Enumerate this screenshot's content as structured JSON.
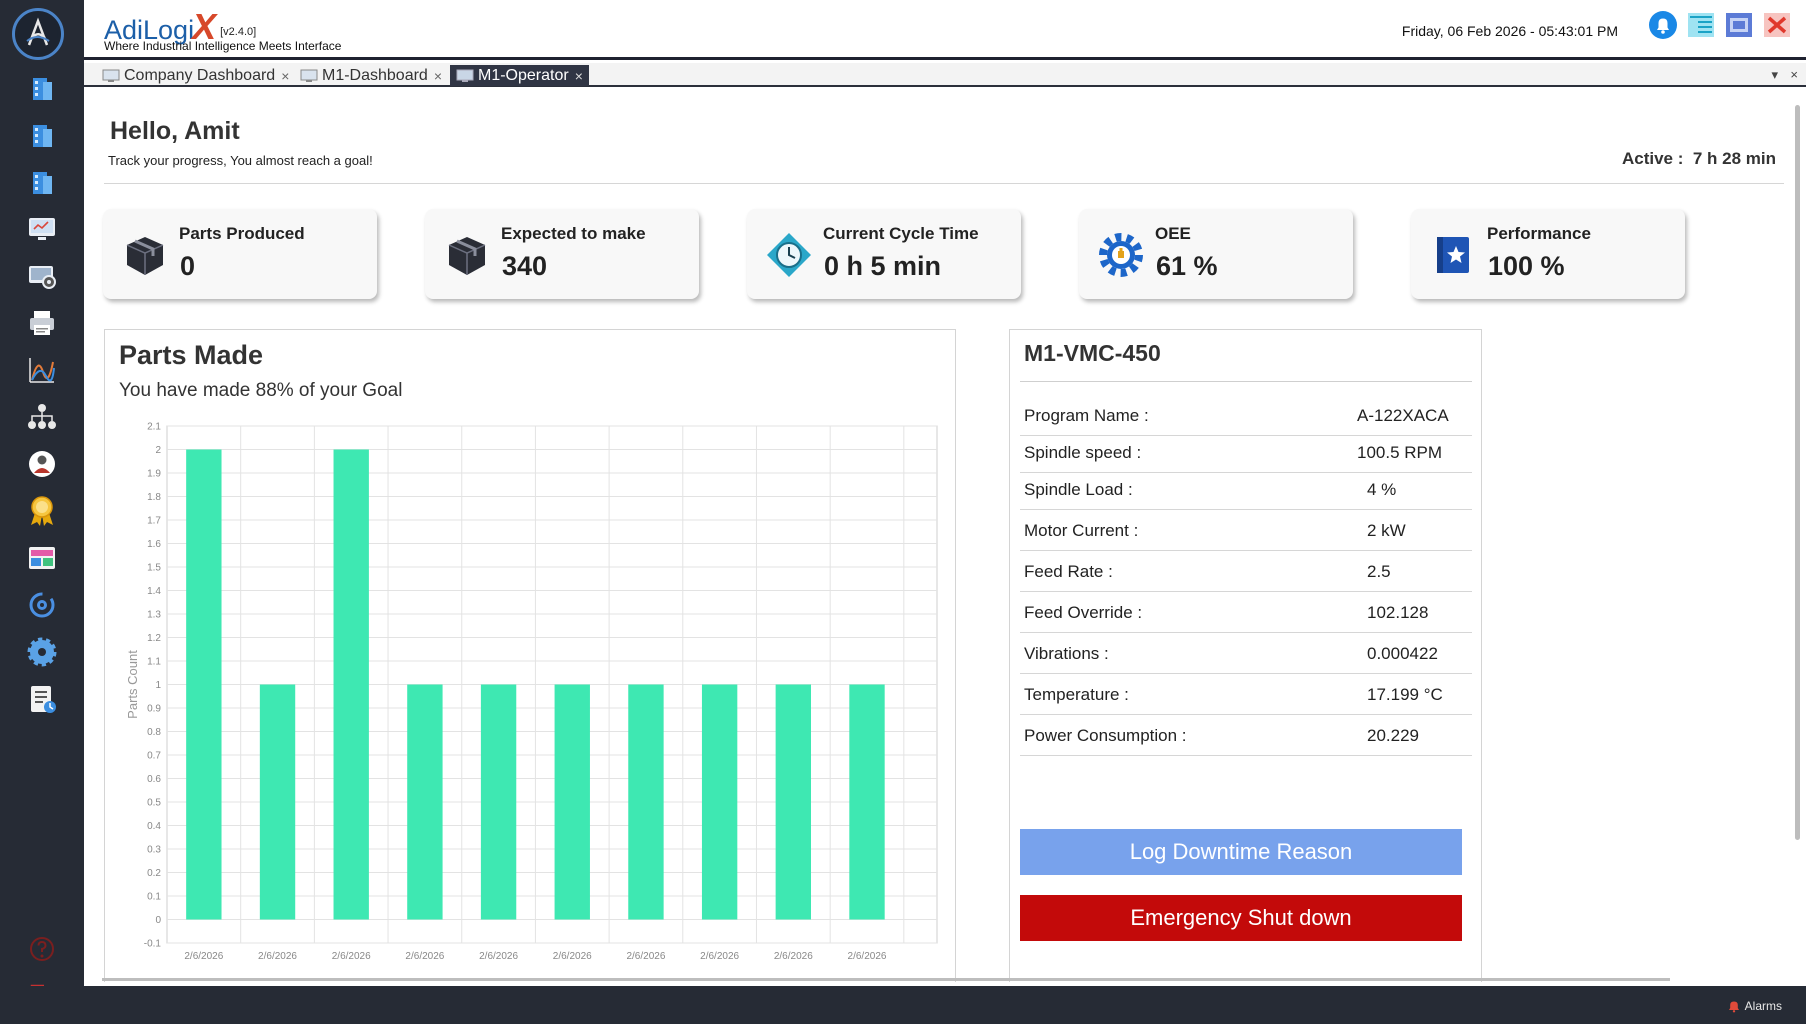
{
  "app": {
    "brand_name": "AdiLogi",
    "brand_x": "X",
    "version": "[v2.4.0]",
    "tagline": "Where Industrial Intelligence Meets Interface",
    "datetime": "Friday, 06 Feb 2026 - 05:43:01 PM"
  },
  "tabs": [
    {
      "label": "Company Dashboard",
      "active": false
    },
    {
      "label": "M1-Dashboard",
      "active": false
    },
    {
      "label": "M1-Operator",
      "active": true
    }
  ],
  "tab_close_glyph": "×",
  "tabbar_controls": {
    "dropdown": "▾",
    "close": "×"
  },
  "greeting": {
    "title": "Hello, Amit",
    "subtitle": "Track your progress, You almost reach a goal!",
    "active_label": "Active :",
    "active_value": "7 h 28 min"
  },
  "kpis": [
    {
      "label": "Parts Produced",
      "value": "0",
      "icon": "box-icon"
    },
    {
      "label": "Expected to make",
      "value": "340",
      "icon": "box-icon"
    },
    {
      "label": "Current Cycle Time",
      "value": "0 h 5 min",
      "icon": "clock-icon"
    },
    {
      "label": "OEE",
      "value": "61 %",
      "icon": "gear-icon"
    },
    {
      "label": "Performance",
      "value": "100 %",
      "icon": "badge-icon"
    }
  ],
  "parts_made": {
    "title": "Parts Made",
    "subtitle": "You have made 88% of your Goal"
  },
  "chart_data": {
    "type": "bar",
    "ylabel": "Parts Count",
    "xlabel": "",
    "ylim": [
      -0.1,
      2.1
    ],
    "ytick_step": 0.1,
    "grid": true,
    "categories": [
      "2/6/2026",
      "2/6/2026",
      "2/6/2026",
      "2/6/2026",
      "2/6/2026",
      "2/6/2026",
      "2/6/2026",
      "2/6/2026",
      "2/6/2026",
      "2/6/2026"
    ],
    "values": [
      2,
      1,
      2,
      1,
      1,
      1,
      1,
      1,
      1,
      1
    ],
    "bar_color": "#3ee8b2"
  },
  "machine": {
    "title": "M1-VMC-450",
    "params": [
      {
        "label": "Program Name :",
        "value": "A-122XACA"
      },
      {
        "label": "Spindle speed :",
        "value": "100.5 RPM"
      },
      {
        "label": "Spindle Load :",
        "value": "4 %"
      },
      {
        "label": "Motor Current :",
        "value": "2 kW"
      },
      {
        "label": "Feed Rate :",
        "value": "2.5"
      },
      {
        "label": "Feed Override :",
        "value": "102.128"
      },
      {
        "label": "Vibrations :",
        "value": "0.000422"
      },
      {
        "label": "Temperature :",
        "value": "17.199 °C"
      },
      {
        "label": "Power Consumption :",
        "value": "20.229"
      }
    ],
    "log_button": "Log Downtime Reason",
    "stop_button": "Emergency Shut down"
  },
  "status": {
    "alarms": "Alarms"
  },
  "colors": {
    "sidebar_bg": "#262b35",
    "accent_blue": "#1c5fa8",
    "log_button": "#78a2ec",
    "stop_button": "#c30a0a",
    "bar": "#3ee8b2"
  }
}
